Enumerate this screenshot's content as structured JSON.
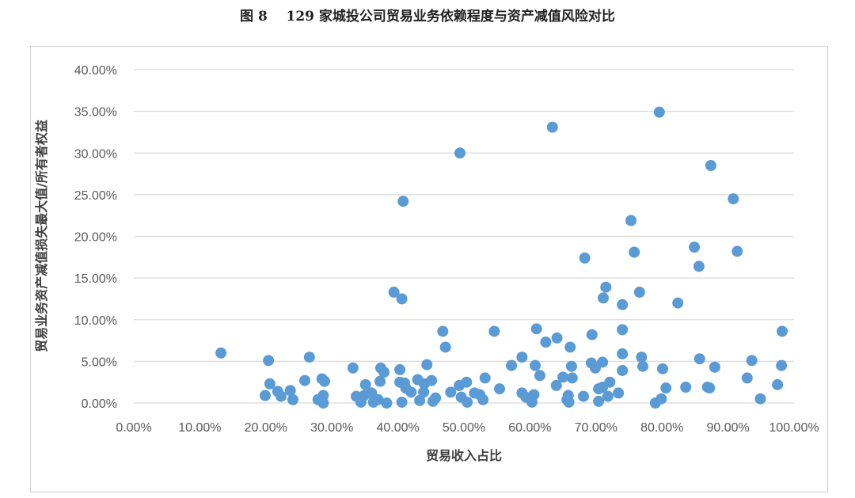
{
  "title": "图 8    129 家城投公司贸易业务依赖程度与资产减值风险对比",
  "chart_data": {
    "type": "scatter",
    "title": "图 8    129 家城投公司贸易业务依赖程度与资产减值风险对比",
    "xlabel": "贸易收入占比",
    "ylabel": "贸易业务资产减值损失最大值/所有者权益",
    "xlim": [
      0,
      100
    ],
    "ylim": [
      0,
      40
    ],
    "x_ticks": [
      "0.00%",
      "10.00%",
      "20.00%",
      "30.00%",
      "40.00%",
      "50.00%",
      "60.00%",
      "70.00%",
      "80.00%",
      "90.00%",
      "100.00%"
    ],
    "y_ticks": [
      "0.00%",
      "5.00%",
      "10.00%",
      "15.00%",
      "20.00%",
      "25.00%",
      "30.00%",
      "35.00%",
      "40.00%"
    ],
    "grid": "horizontal",
    "marker_color": "#5b9bd5",
    "units": "percent",
    "points": [
      [
        13.2,
        6.0
      ],
      [
        20.4,
        5.1
      ],
      [
        19.9,
        0.9
      ],
      [
        20.6,
        2.3
      ],
      [
        21.8,
        1.4
      ],
      [
        22.3,
        0.8
      ],
      [
        23.7,
        1.5
      ],
      [
        24.1,
        0.4
      ],
      [
        25.9,
        2.7
      ],
      [
        26.6,
        5.5
      ],
      [
        27.9,
        0.4
      ],
      [
        28.5,
        2.9
      ],
      [
        28.9,
        2.6
      ],
      [
        28.7,
        0.9
      ],
      [
        28.7,
        0.0
      ],
      [
        33.2,
        4.2
      ],
      [
        33.7,
        0.8
      ],
      [
        34.4,
        0.1
      ],
      [
        34.9,
        0.9
      ],
      [
        35.1,
        2.2
      ],
      [
        36.0,
        1.2
      ],
      [
        36.3,
        0.1
      ],
      [
        37.0,
        0.4
      ],
      [
        37.4,
        4.2
      ],
      [
        37.9,
        3.7
      ],
      [
        37.3,
        2.6
      ],
      [
        38.3,
        0.0
      ],
      [
        39.4,
        13.3
      ],
      [
        40.6,
        12.5
      ],
      [
        40.8,
        24.2
      ],
      [
        40.3,
        4.0
      ],
      [
        40.3,
        2.5
      ],
      [
        40.6,
        0.1
      ],
      [
        41.0,
        2.4
      ],
      [
        41.2,
        1.8
      ],
      [
        42.0,
        1.3
      ],
      [
        43.0,
        2.8
      ],
      [
        43.3,
        0.3
      ],
      [
        43.9,
        1.3
      ],
      [
        44.0,
        2.3
      ],
      [
        44.4,
        4.6
      ],
      [
        45.1,
        2.7
      ],
      [
        45.3,
        0.2
      ],
      [
        45.7,
        0.6
      ],
      [
        46.8,
        8.6
      ],
      [
        47.2,
        6.7
      ],
      [
        48.0,
        1.3
      ],
      [
        49.3,
        2.1
      ],
      [
        49.4,
        30.0
      ],
      [
        49.6,
        0.7
      ],
      [
        50.4,
        2.5
      ],
      [
        50.5,
        0.1
      ],
      [
        51.6,
        1.2
      ],
      [
        52.4,
        1.0
      ],
      [
        52.9,
        0.4
      ],
      [
        53.2,
        3.0
      ],
      [
        54.6,
        8.6
      ],
      [
        55.4,
        1.7
      ],
      [
        57.2,
        4.5
      ],
      [
        58.8,
        5.5
      ],
      [
        58.8,
        1.2
      ],
      [
        59.4,
        0.7
      ],
      [
        60.3,
        0.1
      ],
      [
        60.6,
        1.0
      ],
      [
        60.8,
        4.5
      ],
      [
        61.0,
        8.9
      ],
      [
        61.5,
        3.3
      ],
      [
        62.4,
        7.3
      ],
      [
        63.4,
        33.1
      ],
      [
        64.1,
        7.8
      ],
      [
        64.0,
        2.1
      ],
      [
        65.0,
        3.1
      ],
      [
        65.6,
        0.4
      ],
      [
        65.9,
        0.1
      ],
      [
        65.8,
        0.9
      ],
      [
        66.1,
        6.7
      ],
      [
        66.3,
        4.4
      ],
      [
        66.4,
        3.0
      ],
      [
        68.1,
        0.8
      ],
      [
        68.3,
        17.4
      ],
      [
        69.4,
        8.2
      ],
      [
        69.3,
        4.8
      ],
      [
        69.9,
        4.2
      ],
      [
        70.4,
        1.7
      ],
      [
        70.4,
        0.2
      ],
      [
        71.0,
        4.9
      ],
      [
        71.0,
        1.9
      ],
      [
        71.1,
        12.6
      ],
      [
        71.5,
        13.9
      ],
      [
        71.8,
        0.8
      ],
      [
        72.1,
        2.5
      ],
      [
        73.4,
        1.2
      ],
      [
        74.0,
        11.8
      ],
      [
        74.0,
        8.8
      ],
      [
        74.0,
        5.9
      ],
      [
        74.0,
        3.9
      ],
      [
        75.3,
        21.9
      ],
      [
        75.8,
        18.1
      ],
      [
        76.6,
        13.3
      ],
      [
        76.9,
        5.5
      ],
      [
        77.1,
        4.4
      ],
      [
        79.0,
        0.0
      ],
      [
        79.6,
        34.9
      ],
      [
        79.9,
        0.5
      ],
      [
        80.1,
        4.1
      ],
      [
        80.6,
        1.8
      ],
      [
        82.4,
        12.0
      ],
      [
        83.6,
        1.9
      ],
      [
        84.9,
        18.7
      ],
      [
        85.6,
        16.4
      ],
      [
        85.7,
        5.3
      ],
      [
        86.9,
        1.9
      ],
      [
        87.2,
        1.8
      ],
      [
        87.4,
        28.5
      ],
      [
        88.0,
        4.3
      ],
      [
        90.8,
        24.5
      ],
      [
        91.4,
        18.2
      ],
      [
        92.9,
        3.0
      ],
      [
        93.6,
        5.1
      ],
      [
        94.9,
        0.5
      ],
      [
        97.5,
        2.2
      ],
      [
        98.1,
        4.5
      ],
      [
        98.2,
        8.6
      ]
    ]
  }
}
